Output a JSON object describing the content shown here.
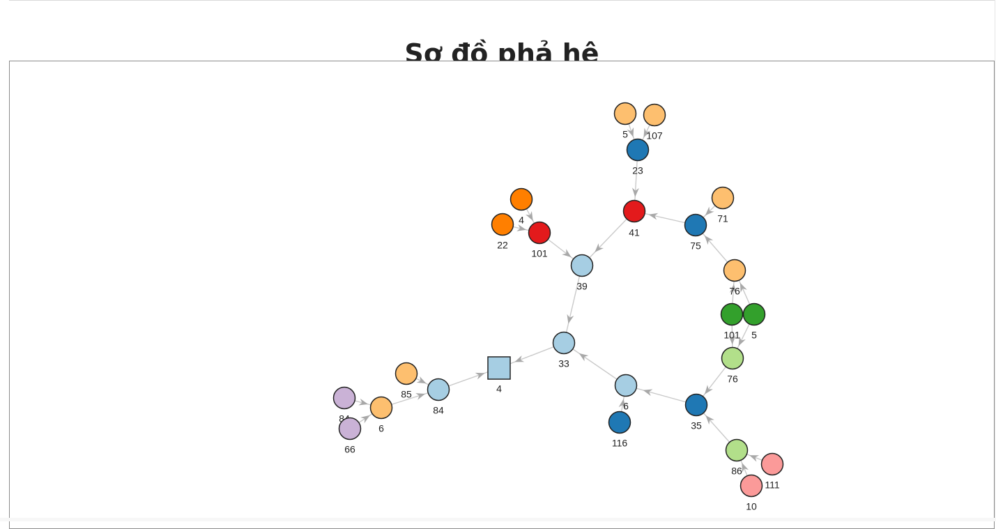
{
  "page": {
    "title": "Sơ đồ phả hệ"
  },
  "palette": {
    "lightblue": "#a6cee3",
    "blue": "#1f78b4",
    "lightgreen": "#b2df8a",
    "green": "#33a02c",
    "pink": "#fb9a99",
    "red": "#e31a1c",
    "peach": "#fdbf6f",
    "orange": "#ff7f00",
    "lavender": "#cab2d6"
  },
  "graph": {
    "nodes": [
      {
        "id": "n4",
        "label": "4",
        "shape": "square",
        "color": "lightblue"
      },
      {
        "id": "n33",
        "label": "33",
        "shape": "circle",
        "color": "lightblue"
      },
      {
        "id": "n39",
        "label": "39",
        "shape": "circle",
        "color": "lightblue"
      },
      {
        "id": "n41",
        "label": "41",
        "shape": "circle",
        "color": "red"
      },
      {
        "id": "n23",
        "label": "23",
        "shape": "circle",
        "color": "blue"
      },
      {
        "id": "n5a",
        "label": "5",
        "shape": "circle",
        "color": "peach"
      },
      {
        "id": "n107",
        "label": "107",
        "shape": "circle",
        "color": "peach"
      },
      {
        "id": "n101a",
        "label": "101",
        "shape": "circle",
        "color": "red"
      },
      {
        "id": "n4o",
        "label": "4",
        "shape": "circle",
        "color": "orange"
      },
      {
        "id": "n22",
        "label": "22",
        "shape": "circle",
        "color": "orange"
      },
      {
        "id": "n75",
        "label": "75",
        "shape": "circle",
        "color": "blue"
      },
      {
        "id": "n71",
        "label": "71",
        "shape": "circle",
        "color": "peach"
      },
      {
        "id": "n76a",
        "label": "76",
        "shape": "circle",
        "color": "peach"
      },
      {
        "id": "n101b",
        "label": "101",
        "shape": "circle",
        "color": "green"
      },
      {
        "id": "n5b",
        "label": "5",
        "shape": "circle",
        "color": "green"
      },
      {
        "id": "n76b",
        "label": "76",
        "shape": "circle",
        "color": "lightgreen"
      },
      {
        "id": "n35",
        "label": "35",
        "shape": "circle",
        "color": "blue"
      },
      {
        "id": "n86",
        "label": "86",
        "shape": "circle",
        "color": "lightgreen"
      },
      {
        "id": "n111",
        "label": "111",
        "shape": "circle",
        "color": "pink"
      },
      {
        "id": "n10",
        "label": "10",
        "shape": "circle",
        "color": "pink"
      },
      {
        "id": "n6a",
        "label": "6",
        "shape": "circle",
        "color": "lightblue"
      },
      {
        "id": "n116",
        "label": "116",
        "shape": "circle",
        "color": "blue"
      },
      {
        "id": "n84a",
        "label": "84",
        "shape": "circle",
        "color": "lightblue"
      },
      {
        "id": "n85",
        "label": "85",
        "shape": "circle",
        "color": "peach"
      },
      {
        "id": "n6b",
        "label": "6",
        "shape": "circle",
        "color": "peach"
      },
      {
        "id": "n84b",
        "label": "84",
        "shape": "circle",
        "color": "lavender"
      },
      {
        "id": "n66",
        "label": "66",
        "shape": "circle",
        "color": "lavender"
      }
    ],
    "edges": [
      {
        "from": "n33",
        "to": "n4"
      },
      {
        "from": "n84a",
        "to": "n4"
      },
      {
        "from": "n39",
        "to": "n33"
      },
      {
        "from": "n6a",
        "to": "n33"
      },
      {
        "from": "n41",
        "to": "n39"
      },
      {
        "from": "n101a",
        "to": "n39"
      },
      {
        "from": "n23",
        "to": "n41"
      },
      {
        "from": "n75",
        "to": "n41"
      },
      {
        "from": "n5a",
        "to": "n23"
      },
      {
        "from": "n107",
        "to": "n23"
      },
      {
        "from": "n4o",
        "to": "n101a"
      },
      {
        "from": "n22",
        "to": "n101a"
      },
      {
        "from": "n71",
        "to": "n75"
      },
      {
        "from": "n76a",
        "to": "n75"
      },
      {
        "from": "n101b",
        "to": "n76a"
      },
      {
        "from": "n5b",
        "to": "n76a"
      },
      {
        "from": "n101b",
        "to": "n76b"
      },
      {
        "from": "n5b",
        "to": "n76b"
      },
      {
        "from": "n76b",
        "to": "n35"
      },
      {
        "from": "n35",
        "to": "n6a"
      },
      {
        "from": "n116",
        "to": "n6a"
      },
      {
        "from": "n86",
        "to": "n35"
      },
      {
        "from": "n111",
        "to": "n86"
      },
      {
        "from": "n10",
        "to": "n86"
      },
      {
        "from": "n85",
        "to": "n84a"
      },
      {
        "from": "n6b",
        "to": "n84a"
      },
      {
        "from": "n84b",
        "to": "n6b"
      },
      {
        "from": "n66",
        "to": "n6b"
      }
    ]
  }
}
